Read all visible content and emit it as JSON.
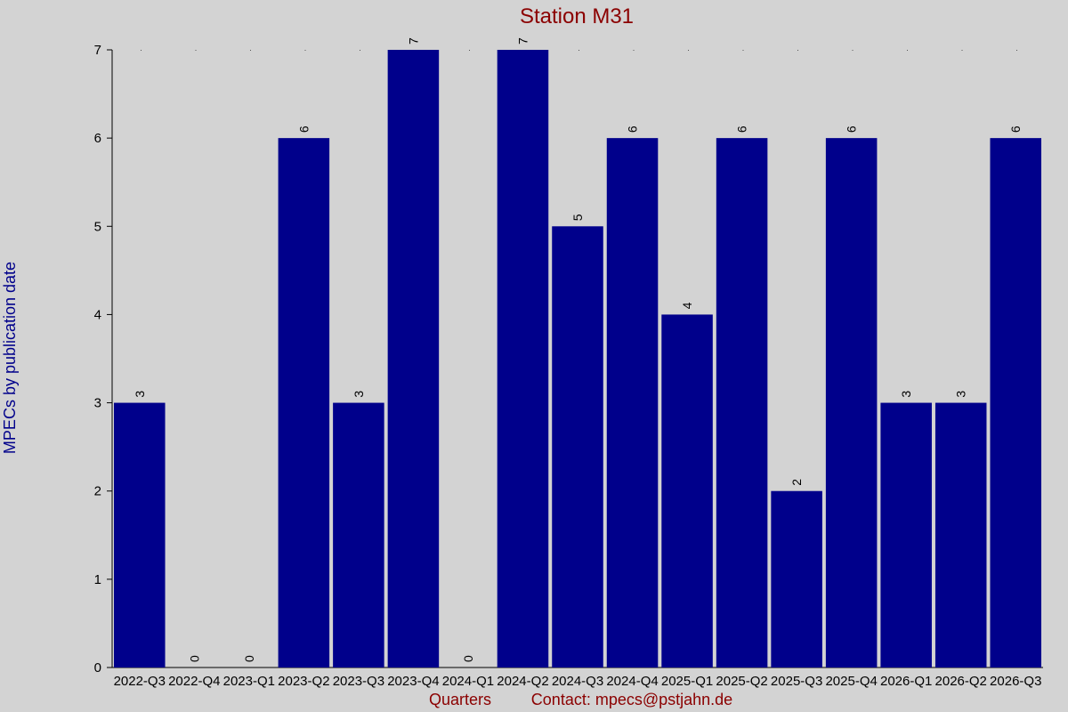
{
  "chart_data": {
    "type": "bar",
    "title": "Station M31",
    "xlabel": "Quarters",
    "ylabel": "MPECs by publication date",
    "footer": "Contact: mpecs@pstjahn.de",
    "categories": [
      "2022-Q3",
      "2022-Q4",
      "2023-Q1",
      "2023-Q2",
      "2023-Q3",
      "2023-Q4",
      "2024-Q1",
      "2024-Q2",
      "2024-Q3",
      "2024-Q4",
      "2025-Q1",
      "2025-Q2",
      "2025-Q3",
      "2025-Q4",
      "2026-Q1",
      "2026-Q2",
      "2026-Q3"
    ],
    "values": [
      3,
      0,
      0,
      6,
      3,
      7,
      0,
      7,
      5,
      6,
      4,
      6,
      2,
      6,
      3,
      3,
      6
    ],
    "ylim": [
      0,
      7
    ],
    "yticks": [
      0,
      1,
      2,
      3,
      4,
      5,
      6,
      7
    ],
    "grid": false,
    "bar_color": "#00008b",
    "background_color": "#d3d3d3"
  }
}
